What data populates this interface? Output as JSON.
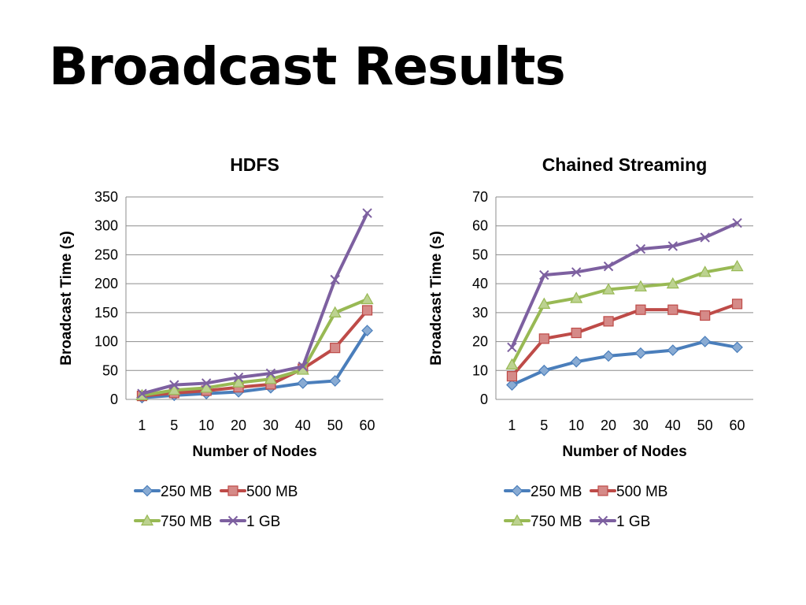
{
  "slide": {
    "title": "Broadcast Results"
  },
  "colors": {
    "250 MB": "#4a7ebb",
    "500 MB": "#be4b48",
    "750 MB": "#98b954",
    "1 GB": "#7d60a0"
  },
  "chart_data": [
    {
      "id": "hdfs",
      "type": "line",
      "title": "HDFS",
      "xlabel": "Number of Nodes",
      "ylabel": "Broadcast Time (s)",
      "categories": [
        "1",
        "5",
        "10",
        "20",
        "30",
        "40",
        "50",
        "60"
      ],
      "ylim": [
        0,
        350
      ],
      "yticks": [
        "0",
        "50",
        "100",
        "150",
        "200",
        "250",
        "300",
        "350"
      ],
      "grid": true,
      "legend": "bottom",
      "series": [
        {
          "name": "250 MB",
          "marker": "diamond",
          "values": [
            3,
            7,
            10,
            13,
            20,
            28,
            32,
            119
          ]
        },
        {
          "name": "500 MB",
          "marker": "square",
          "values": [
            6,
            11,
            15,
            21,
            26,
            53,
            89,
            154
          ]
        },
        {
          "name": "750 MB",
          "marker": "triangle",
          "values": [
            7,
            16,
            20,
            29,
            35,
            51,
            150,
            173
          ]
        },
        {
          "name": "1 GB",
          "marker": "x",
          "values": [
            10,
            25,
            28,
            38,
            45,
            57,
            207,
            322
          ]
        }
      ]
    },
    {
      "id": "chained",
      "type": "line",
      "title": "Chained Streaming",
      "xlabel": "Number of Nodes",
      "ylabel": "Broadcast Time (s)",
      "categories": [
        "1",
        "5",
        "10",
        "20",
        "30",
        "40",
        "50",
        "60"
      ],
      "ylim": [
        0,
        70
      ],
      "yticks": [
        "0",
        "10",
        "20",
        "30",
        "40",
        "50",
        "60",
        "70"
      ],
      "grid": true,
      "legend": "bottom",
      "series": [
        {
          "name": "250 MB",
          "marker": "diamond",
          "values": [
            5,
            10,
            13,
            15,
            16,
            17,
            20,
            18
          ]
        },
        {
          "name": "500 MB",
          "marker": "square",
          "values": [
            8,
            21,
            23,
            27,
            31,
            31,
            29,
            33
          ]
        },
        {
          "name": "750 MB",
          "marker": "triangle",
          "values": [
            12,
            33,
            35,
            38,
            39,
            40,
            44,
            46
          ]
        },
        {
          "name": "1 GB",
          "marker": "x",
          "values": [
            18,
            43,
            44,
            46,
            52,
            53,
            56,
            61
          ]
        }
      ]
    }
  ]
}
